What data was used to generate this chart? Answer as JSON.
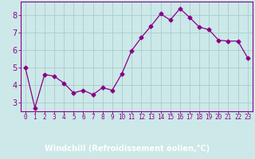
{
  "x": [
    0,
    1,
    2,
    3,
    4,
    5,
    6,
    7,
    8,
    9,
    10,
    11,
    12,
    13,
    14,
    15,
    16,
    17,
    18,
    19,
    20,
    21,
    22,
    23
  ],
  "y": [
    5.0,
    2.7,
    4.6,
    4.5,
    4.1,
    3.55,
    3.7,
    3.45,
    3.85,
    3.7,
    4.65,
    5.95,
    6.7,
    7.35,
    8.05,
    7.7,
    8.35,
    7.85,
    7.3,
    7.15,
    6.55,
    6.5,
    6.5,
    5.55
  ],
  "line_color": "#880088",
  "marker": "D",
  "marker_size": 2.5,
  "background_color": "#cce8e8",
  "plot_bg_color": "#cce8e8",
  "grid_color": "#aacccc",
  "bottom_bar_color": "#7700aa",
  "xlabel": "Windchill (Refroidissement éolien,°C)",
  "xlim": [
    -0.5,
    23.5
  ],
  "ylim": [
    2.5,
    8.75
  ],
  "yticks": [
    3,
    4,
    5,
    6,
    7,
    8
  ],
  "xticks": [
    0,
    1,
    2,
    3,
    4,
    5,
    6,
    7,
    8,
    9,
    10,
    11,
    12,
    13,
    14,
    15,
    16,
    17,
    18,
    19,
    20,
    21,
    22,
    23
  ],
  "tick_color": "#880088",
  "label_color": "#ffffff",
  "font_size_xlabel": 7,
  "font_size_ytick": 7,
  "font_size_xtick": 5.5
}
